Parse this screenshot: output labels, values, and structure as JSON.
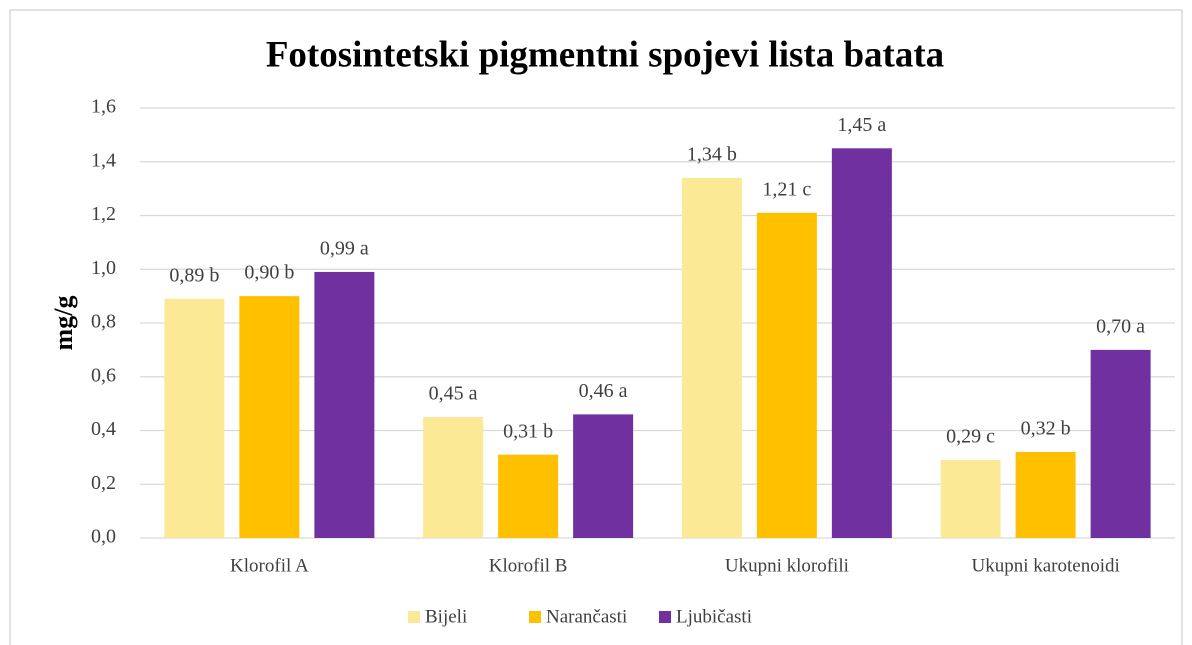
{
  "chart_data": {
    "type": "bar",
    "title": "Fotosintetski pigmentni spojevi lista batata",
    "y_label": "mg/g",
    "categories": [
      "Klorofil A",
      "Klorofil B",
      "Ukupni klorofili",
      "Ukupni karotenoidi"
    ],
    "series": [
      {
        "name": "Bijeli",
        "color": "#fbe995",
        "values": [
          0.89,
          0.45,
          1.34,
          0.29
        ],
        "value_labels": [
          "0,89 b",
          "0,45 a",
          "1,34 b",
          "0,29 c"
        ]
      },
      {
        "name": "Narančasti",
        "color": "#ffc000",
        "values": [
          0.9,
          0.31,
          1.21,
          0.32
        ],
        "value_labels": [
          "0,90 b",
          "0,31 b",
          "1,21 c",
          "0,32 b"
        ]
      },
      {
        "name": "Ljubičasti",
        "color": "#7030a0",
        "values": [
          0.99,
          0.46,
          1.45,
          0.7
        ],
        "value_labels": [
          "0,99 a",
          "0,46 a",
          "1,45 a",
          "0,70 a"
        ]
      }
    ],
    "ylim": [
      0,
      1.6
    ],
    "yticks": [
      {
        "value": 0,
        "label": "0,0"
      },
      {
        "value": 0.2,
        "label": "0,2"
      },
      {
        "value": 0.4,
        "label": "0,4"
      },
      {
        "value": 0.6,
        "label": "0,6"
      },
      {
        "value": 0.8,
        "label": "0,8"
      },
      {
        "value": 1.0,
        "label": "1,0"
      },
      {
        "value": 1.2,
        "label": "1,2"
      },
      {
        "value": 1.4,
        "label": "1,4"
      },
      {
        "value": 1.6,
        "label": "1,6"
      }
    ],
    "grid": true,
    "legend": "bottom"
  }
}
